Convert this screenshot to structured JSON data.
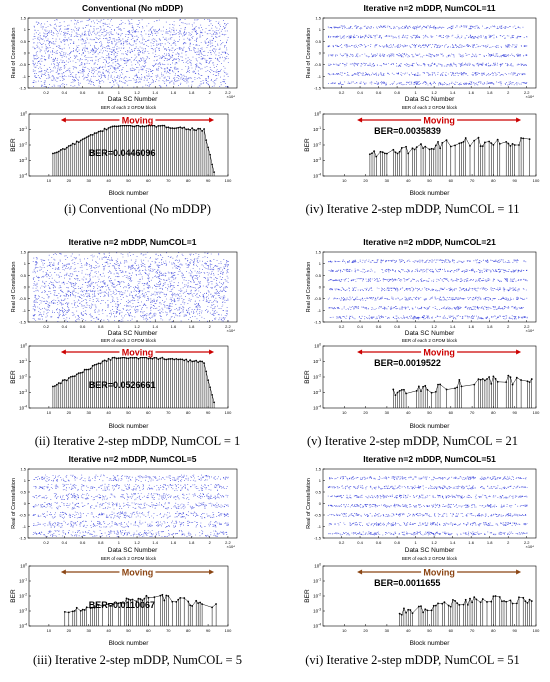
{
  "figure": {
    "panels": [
      {
        "id": "i",
        "title": "Conventional (No mDDP)",
        "caption": "(i) Conventional (No mDDP)",
        "ber_label": "BER=0.0446096",
        "density": "high",
        "ber_profile": "high",
        "moving_color": "#cc0000"
      },
      {
        "id": "iv",
        "title": "Iterative n=2 mDDP, NumCOL=11",
        "caption": "(iv) Iterative 2-step mDDP, NumCOL = 11",
        "ber_label": "BER=0.0035839",
        "density": "low",
        "ber_profile": "mid_low",
        "moving_color": "#cc0000"
      },
      {
        "id": "ii",
        "title": "Iterative n=2 mDDP, NumCOL=1",
        "caption": "(ii) Iterative 2-step mDDP, NumCOL = 1",
        "ber_label": "BER=0.0526661",
        "density": "high",
        "ber_profile": "high",
        "moving_color": "#cc0000"
      },
      {
        "id": "v",
        "title": "Iterative n=2 mDDP, NumCOL=21",
        "caption": "(v) Iterative 2-step mDDP, NumCOL = 21",
        "ber_label": "BER=0.0019522",
        "density": "low",
        "ber_profile": "low",
        "moving_color": "#cc0000"
      },
      {
        "id": "iii",
        "title": "Iterative n=2 mDDP, NumCOL=5",
        "caption": "(iii) Iterative 2-step mDDP, NumCOL = 5",
        "ber_label": "BER=0.0110067",
        "density": "medium",
        "ber_profile": "mid",
        "moving_color": "#8b4513"
      },
      {
        "id": "vi",
        "title": "Iterative n=2 mDDP, NumCOL=51",
        "caption": "(vi) Iterative 2-step mDDP, NumCOL = 51",
        "ber_label": "BER=0.0011655",
        "density": "low",
        "ber_profile": "low",
        "moving_color": "#8b4513"
      }
    ],
    "constellation_plot": {
      "ylabel": "Real of Constellation",
      "xlabel": "Data SC Number",
      "x_exponent": "×10⁴",
      "xticks": [
        "0.2",
        "0.4",
        "0.6",
        "0.8",
        "1",
        "1.2",
        "1.4",
        "1.6",
        "1.8",
        "2",
        "2.2"
      ],
      "yticks": [
        "1.5",
        "1",
        "0.5",
        "0",
        "-0.5",
        "-1",
        "-1.5"
      ],
      "xlim": [
        0,
        23000
      ],
      "ylim": [
        -1.5,
        1.5
      ],
      "levels": [
        -1.3,
        -0.9,
        -0.5,
        -0.1,
        0.3,
        0.7,
        1.1
      ],
      "point_color": "#1f2bd6"
    },
    "ber_plot": {
      "subtitle": "BER of each 2 GFDM block",
      "ylabel": "BER",
      "xlabel": "Block number",
      "xticks": [
        "10",
        "20",
        "30",
        "40",
        "50",
        "60",
        "70",
        "80",
        "90",
        "100"
      ],
      "ytick_exponents": [
        "0",
        "-1",
        "-2",
        "-3",
        "-4"
      ],
      "xlim": [
        0,
        100
      ],
      "ylog_range": [
        -4,
        0
      ],
      "moving_label": "Moving",
      "moving_range": [
        16,
        93
      ],
      "marker_color": "#000000"
    }
  }
}
